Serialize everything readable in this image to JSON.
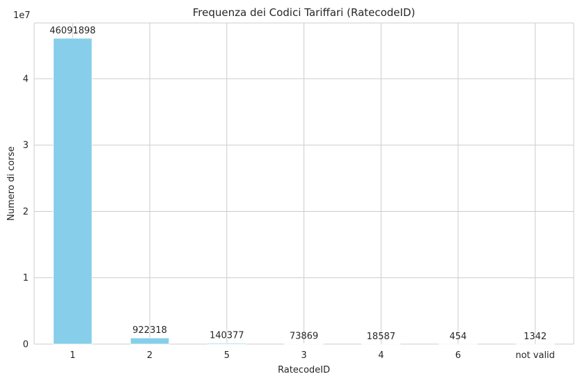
{
  "chart_data": {
    "type": "bar",
    "title": "Frequenza dei Codici Tariffari (RatecodeID)",
    "xlabel": "RatecodeID",
    "ylabel": "Numero di corse",
    "y_offset_text": "1e7",
    "categories": [
      "1",
      "2",
      "5",
      "3",
      "4",
      "6",
      "not valid"
    ],
    "values": [
      46091898,
      922318,
      140377,
      73869,
      18587,
      454,
      1342
    ],
    "data_labels": [
      "46091898",
      "922318",
      "140377",
      "73869",
      "18587",
      "454",
      "1342"
    ],
    "ylim": [
      0,
      48396493
    ],
    "y_ticks": [
      0,
      10000000,
      20000000,
      30000000,
      40000000
    ],
    "y_tick_labels": [
      "0",
      "1",
      "2",
      "3",
      "4"
    ],
    "grid": true,
    "bar_color": "#87CEEB",
    "grid_color": "#cccccc"
  }
}
